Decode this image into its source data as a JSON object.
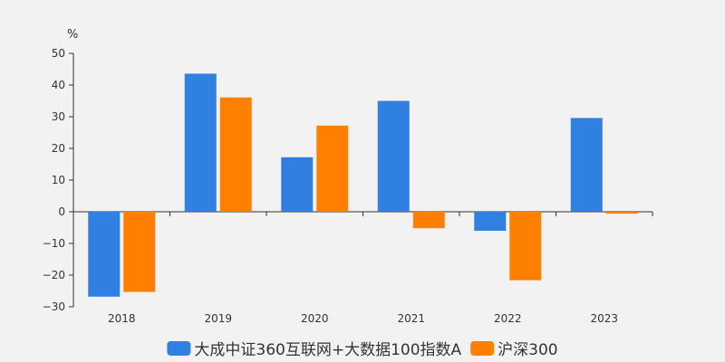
{
  "chart_data": {
    "type": "bar",
    "unit_label": "%",
    "categories": [
      "2018",
      "2019",
      "2020",
      "2021",
      "2022",
      "2023"
    ],
    "series": [
      {
        "name": "大成中证360互联网+大数据100指数A",
        "color": "#2f80e0",
        "values": [
          -26.8,
          43.6,
          17.2,
          35.0,
          -6.0,
          29.6
        ]
      },
      {
        "name": "沪深300",
        "color": "#ff7f00",
        "values": [
          -25.3,
          36.1,
          27.2,
          -5.2,
          -21.6,
          -0.6
        ]
      }
    ],
    "ylim": [
      -30,
      50
    ],
    "yticks": [
      -30,
      -20,
      -10,
      0,
      10,
      20,
      30,
      40,
      50
    ],
    "ytick_labels": [
      "−30",
      "−20",
      "−10",
      "0",
      "10",
      "20",
      "30",
      "40",
      "50"
    ],
    "legend": "bottom",
    "grid": false
  }
}
